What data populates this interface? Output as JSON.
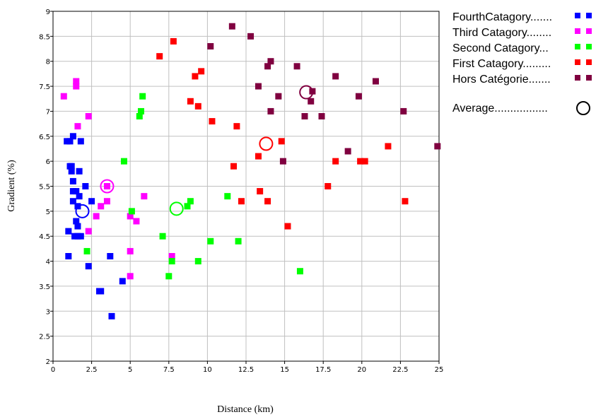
{
  "chart_data": {
    "type": "scatter",
    "title": "",
    "xlabel": "Distance (km)",
    "ylabel": "Gradient (%)",
    "xlim": [
      0,
      25
    ],
    "ylim": [
      2,
      9
    ],
    "x_ticks": [
      "0",
      "2.5",
      "5",
      "7.5",
      "10",
      "12.5",
      "15",
      "17.5",
      "20",
      "22.5",
      "25"
    ],
    "y_ticks": [
      "2",
      "2.5",
      "3",
      "3.5",
      "4",
      "4.5",
      "5",
      "5.5",
      "6",
      "6.5",
      "7",
      "7.5",
      "8",
      "8.5",
      "9"
    ],
    "grid": true,
    "legend_position": "right",
    "series": [
      {
        "name": "FourthCatagory.......",
        "color": "#0000ff",
        "marker": "square",
        "points": [
          [
            0.9,
            6.4
          ],
          [
            1.1,
            6.4
          ],
          [
            1.3,
            6.5
          ],
          [
            1.8,
            6.4
          ],
          [
            1.1,
            5.9
          ],
          [
            1.2,
            5.9
          ],
          [
            1.2,
            5.8
          ],
          [
            1.7,
            5.8
          ],
          [
            1.3,
            5.6
          ],
          [
            1.3,
            5.4
          ],
          [
            1.5,
            5.4
          ],
          [
            2.1,
            5.5
          ],
          [
            1.7,
            5.3
          ],
          [
            1.3,
            5.2
          ],
          [
            2.5,
            5.2
          ],
          [
            1.6,
            5.1
          ],
          [
            1.5,
            4.8
          ],
          [
            1.6,
            4.7
          ],
          [
            1.0,
            4.6
          ],
          [
            1.4,
            4.5
          ],
          [
            1.6,
            4.5
          ],
          [
            1.8,
            4.5
          ],
          [
            1.0,
            4.1
          ],
          [
            3.7,
            4.1
          ],
          [
            2.3,
            3.9
          ],
          [
            4.5,
            3.6
          ],
          [
            3.0,
            3.4
          ],
          [
            3.1,
            3.4
          ],
          [
            3.8,
            2.9
          ]
        ],
        "average": [
          1.9,
          5.0
        ]
      },
      {
        "name": "Third Catagory........",
        "color": "#ff00ff",
        "marker": "square",
        "points": [
          [
            0.7,
            7.3
          ],
          [
            1.5,
            7.6
          ],
          [
            1.5,
            7.5
          ],
          [
            1.6,
            6.7
          ],
          [
            2.3,
            6.9
          ],
          [
            3.5,
            5.5
          ],
          [
            5.9,
            5.3
          ],
          [
            3.5,
            5.2
          ],
          [
            3.1,
            5.1
          ],
          [
            2.8,
            4.9
          ],
          [
            5.0,
            4.9
          ],
          [
            5.4,
            4.8
          ],
          [
            2.3,
            4.6
          ],
          [
            5.0,
            4.2
          ],
          [
            7.7,
            4.1
          ],
          [
            5.0,
            3.7
          ]
        ],
        "average": [
          3.5,
          5.5
        ]
      },
      {
        "name": "Second Catagory...",
        "color": "#00ff00",
        "marker": "square",
        "points": [
          [
            5.8,
            7.3
          ],
          [
            5.7,
            7.0
          ],
          [
            5.6,
            6.9
          ],
          [
            4.6,
            6.0
          ],
          [
            11.3,
            5.3
          ],
          [
            8.9,
            5.2
          ],
          [
            8.7,
            5.1
          ],
          [
            5.1,
            5.0
          ],
          [
            7.1,
            4.5
          ],
          [
            10.2,
            4.4
          ],
          [
            12.0,
            4.4
          ],
          [
            2.2,
            4.2
          ],
          [
            7.7,
            4.0
          ],
          [
            9.4,
            4.0
          ],
          [
            16.0,
            3.8
          ],
          [
            7.5,
            3.7
          ]
        ],
        "average": [
          8.0,
          5.05
        ]
      },
      {
        "name": "First Catagory.........",
        "color": "#ff0000",
        "marker": "square",
        "points": [
          [
            7.8,
            8.4
          ],
          [
            6.9,
            8.1
          ],
          [
            9.6,
            7.8
          ],
          [
            9.2,
            7.7
          ],
          [
            8.9,
            7.2
          ],
          [
            9.4,
            7.1
          ],
          [
            10.3,
            6.8
          ],
          [
            11.9,
            6.7
          ],
          [
            14.8,
            6.4
          ],
          [
            21.7,
            6.3
          ],
          [
            13.3,
            6.1
          ],
          [
            18.3,
            6.0
          ],
          [
            19.9,
            6.0
          ],
          [
            20.2,
            6.0
          ],
          [
            11.7,
            5.9
          ],
          [
            17.8,
            5.5
          ],
          [
            13.4,
            5.4
          ],
          [
            12.2,
            5.2
          ],
          [
            13.9,
            5.2
          ],
          [
            22.8,
            5.2
          ],
          [
            15.2,
            4.7
          ]
        ],
        "average": [
          13.8,
          6.35
        ]
      },
      {
        "name": "Hors Catégorie.......",
        "color": "#800040",
        "marker": "square",
        "points": [
          [
            11.6,
            8.7
          ],
          [
            12.8,
            8.5
          ],
          [
            10.2,
            8.3
          ],
          [
            14.1,
            8.0
          ],
          [
            13.9,
            7.9
          ],
          [
            15.8,
            7.9
          ],
          [
            18.3,
            7.7
          ],
          [
            20.9,
            7.6
          ],
          [
            13.3,
            7.5
          ],
          [
            16.8,
            7.4
          ],
          [
            14.6,
            7.3
          ],
          [
            19.8,
            7.3
          ],
          [
            16.7,
            7.2
          ],
          [
            14.1,
            7.0
          ],
          [
            22.7,
            7.0
          ],
          [
            16.3,
            6.9
          ],
          [
            17.4,
            6.9
          ],
          [
            19.1,
            6.2
          ],
          [
            24.9,
            6.3
          ],
          [
            14.9,
            6.0
          ]
        ],
        "average": [
          16.4,
          7.38
        ]
      }
    ],
    "average_label": "Average................."
  }
}
